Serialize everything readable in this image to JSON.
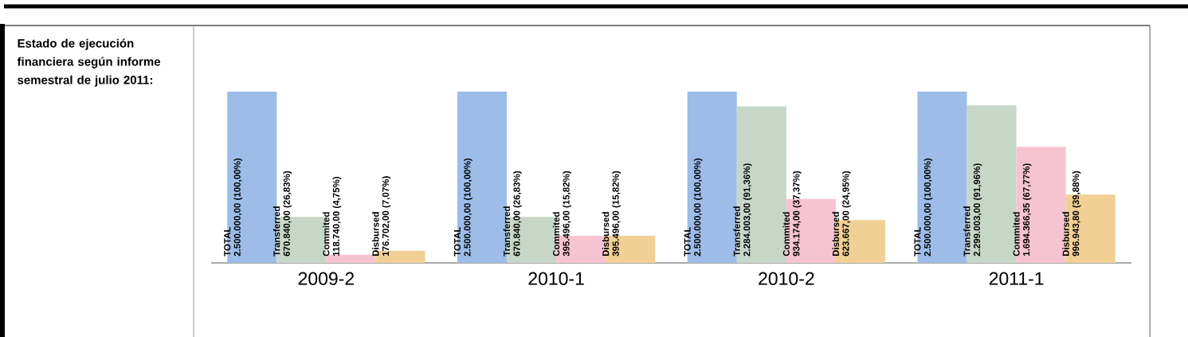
{
  "chart_data": {
    "type": "bar",
    "title": "Estado de ejecución financiera según informe semestral de julio 2011:",
    "categories": [
      "2009-2",
      "2010-1",
      "2010-2",
      "2011-1"
    ],
    "series": [
      {
        "name": "TOTAL",
        "color": "#9dbde8",
        "values": [
          2500000.0,
          2500000.0,
          2500000.0,
          2500000.0
        ],
        "value_labels": [
          "2.500.000,00 (100,00%)",
          "2.500.000,00 (100,00%)",
          "2.500.000,00 (100,00%)",
          "2.500.000,00 (100,00%)"
        ]
      },
      {
        "name": "Transferred",
        "color": "#c6d7c8",
        "values": [
          670840.0,
          670840.0,
          2284003.0,
          2299003.0
        ],
        "value_labels": [
          "670.840,00 (26,83%)",
          "670.840,00 (26,83%)",
          "2.284.003,00 (91,36%)",
          "2.299.003,00 (91,96%)"
        ]
      },
      {
        "name": "Commited",
        "color": "#f6c4d0",
        "values": [
          118740.0,
          395496.0,
          934174.0,
          1694366.35
        ],
        "value_labels": [
          "118.740,00 (4,75%)",
          "395.496,00 (15,82%)",
          "934.174,00 (37,37%)",
          "1.694.366,35 (67,77%)"
        ]
      },
      {
        "name": "Disbursed",
        "color": "#f1d096",
        "values": [
          176702.0,
          395496.0,
          623667.0,
          996943.8
        ],
        "value_labels": [
          "176.702,00 (7,07%)",
          "395.496,00 (15,82%)",
          "623.667,00 (24,95%)",
          "996.943,80 (39,88%)"
        ]
      }
    ]
  }
}
